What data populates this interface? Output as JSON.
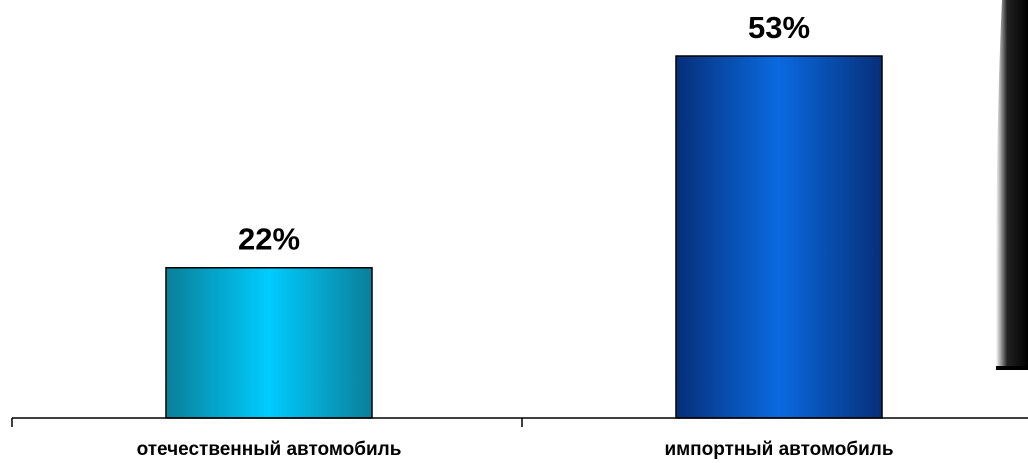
{
  "chart_data": {
    "type": "bar",
    "categories": [
      "отечественный автомобиль",
      "импортный автомобиль"
    ],
    "values": [
      22,
      53
    ],
    "value_labels": [
      "22%",
      "53%"
    ],
    "unit": "%",
    "title": "",
    "xlabel": "",
    "ylabel": "",
    "ylim": [
      0,
      60
    ],
    "grid": false,
    "legend": "none",
    "bar_colors": [
      "#00c8f0",
      "#0a5ccc"
    ]
  },
  "colors": {
    "bar_1_edge": "#0a7f99",
    "bar_1_center": "#00ccff",
    "bar_2_edge": "#062f7a",
    "bar_2_center": "#0a6ae0",
    "axis": "#000000",
    "background": "#ffffff"
  }
}
